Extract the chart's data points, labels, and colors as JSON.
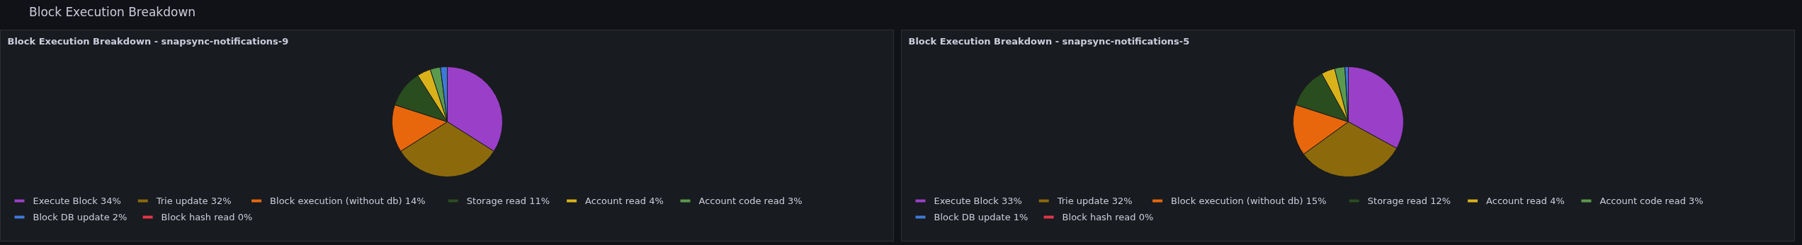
{
  "chart_data": [
    {
      "type": "pie",
      "title": "Block Execution Breakdown - snapsync-notifications-9",
      "annotations": [
        "Block Execution Breakdown"
      ],
      "categories": [
        "Execute Block",
        "Trie update",
        "Block execution (without db)",
        "Storage read",
        "Account read",
        "Account code read",
        "Block DB update",
        "Block hash read"
      ],
      "values": [
        34,
        32,
        14,
        11,
        4,
        3,
        2,
        0
      ],
      "value_labels": [
        "34%",
        "32%",
        "14%",
        "11%",
        "4%",
        "3%",
        "2%",
        "0%"
      ],
      "colors": [
        "#9a3fc8",
        "#8c6a0c",
        "#e8670c",
        "#2a4d1f",
        "#d9b21b",
        "#5a9a4e",
        "#3d7ad6",
        "#e0364a"
      ],
      "legend": "bottom"
    },
    {
      "type": "pie",
      "title": "Block Execution Breakdown - snapsync-notifications-5",
      "categories": [
        "Execute Block",
        "Trie update",
        "Block execution (without db)",
        "Storage read",
        "Account read",
        "Account code read",
        "Block DB update",
        "Block hash read"
      ],
      "values": [
        33,
        32,
        15,
        12,
        4,
        3,
        1,
        0
      ],
      "value_labels": [
        "33%",
        "32%",
        "15%",
        "12%",
        "4%",
        "3%",
        "1%",
        "0%"
      ],
      "colors": [
        "#9a3fc8",
        "#8c6a0c",
        "#e8670c",
        "#2a4d1f",
        "#d9b21b",
        "#5a9a4e",
        "#3d7ad6",
        "#e0364a"
      ],
      "legend": "bottom"
    }
  ]
}
